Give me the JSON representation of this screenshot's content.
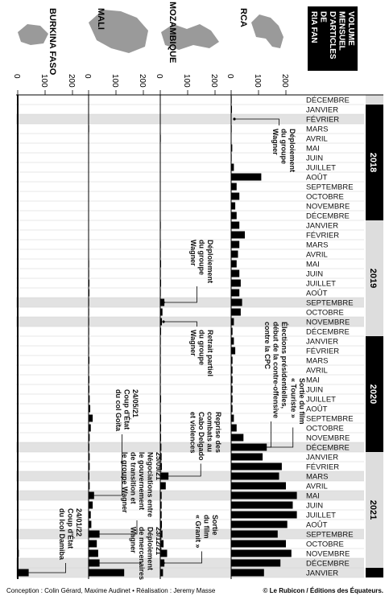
{
  "chart_data": {
    "type": "bar",
    "title": [
      "VOLUME",
      "MENSUEL",
      "D'ARTICLES",
      "DE",
      "RIA FAN"
    ],
    "categories": [
      "DÉCEMBRE",
      "JANVIER",
      "FÉVRIER",
      "MARS",
      "AVRIL",
      "MAI",
      "JUIN",
      "JUILLET",
      "AOÛT",
      "SEPTEMBRE",
      "OCTOBRE",
      "NOVEMBRE",
      "DÉCEMBRE",
      "JANVIER",
      "FÉVRIER",
      "MARS",
      "AVRIL",
      "MAI",
      "JUIN",
      "JUILLET",
      "AOÛT",
      "SEPTEMBRE",
      "OCTOBRE",
      "NOVEMBRE",
      "DÉCEMBRE",
      "JANVIER",
      "FÉVRIER",
      "MARS",
      "AVRIL",
      "MAI",
      "JUIN",
      "JUILLET",
      "AOÛT",
      "SEPTEMBRE",
      "OCTOBRE",
      "NOVEMBRE",
      "DÉCEMBRE",
      "JANVIER",
      "FÉVRIER",
      "MARS",
      "AVRIL",
      "MAI",
      "JUIN",
      "JUILLET",
      "AOÛT",
      "SEPTEMBRE",
      "OCTOBRE",
      "NOVEMBRE",
      "DÉCEMBRE",
      "JANVIER"
    ],
    "years": [
      "2018",
      "2019",
      "2020",
      "2021"
    ],
    "xlim": [
      0,
      250
    ],
    "xticks": [
      0,
      100,
      200
    ],
    "series": [
      {
        "name": "RCA",
        "color": "#000000",
        "values": [
          2,
          3,
          0,
          2,
          1,
          4,
          2,
          10,
          110,
          20,
          30,
          15,
          20,
          30,
          50,
          30,
          25,
          20,
          30,
          35,
          30,
          40,
          35,
          10,
          5,
          10,
          15,
          5,
          5,
          5,
          5,
          5,
          5,
          10,
          20,
          45,
          130,
          115,
          185,
          175,
          200,
          240,
          225,
          240,
          205,
          170,
          200,
          220,
          180,
          120
        ]
      },
      {
        "name": "MOZAMBIQUE",
        "color": "#000000",
        "values": [
          1,
          1,
          1,
          1,
          2,
          1,
          1,
          1,
          1,
          1,
          1,
          1,
          1,
          2,
          1,
          2,
          2,
          3,
          2,
          3,
          2,
          15,
          8,
          6,
          3,
          2,
          2,
          2,
          2,
          2,
          2,
          3,
          2,
          3,
          3,
          3,
          4,
          5,
          6,
          30,
          20,
          5,
          5,
          5,
          6,
          8,
          12,
          25,
          15,
          10
        ]
      },
      {
        "name": "MALI",
        "color": "#000000",
        "values": [
          1,
          1,
          1,
          2,
          1,
          1,
          1,
          1,
          1,
          1,
          1,
          1,
          1,
          1,
          1,
          1,
          1,
          2,
          2,
          3,
          3,
          2,
          2,
          2,
          2,
          2,
          2,
          3,
          2,
          3,
          3,
          4,
          6,
          15,
          8,
          4,
          3,
          4,
          4,
          3,
          4,
          20,
          15,
          8,
          10,
          40,
          30,
          35,
          40,
          130
        ]
      },
      {
        "name": "BURKINA FASO",
        "color": "#000000",
        "values": [
          1,
          1,
          1,
          1,
          1,
          1,
          1,
          1,
          1,
          1,
          1,
          1,
          1,
          1,
          1,
          1,
          1,
          1,
          1,
          1,
          2,
          1,
          1,
          1,
          1,
          1,
          1,
          1,
          1,
          1,
          1,
          2,
          1,
          1,
          2,
          1,
          2,
          1,
          2,
          2,
          2,
          3,
          2,
          2,
          2,
          3,
          3,
          4,
          3,
          40
        ]
      }
    ],
    "annotations": [
      {
        "lines": [
          "Déploiement",
          "du groupe",
          "Wagner"
        ]
      },
      {
        "lines": [
          "Élections présidentielles,",
          "début de la contre-offensive",
          "contre la CPC"
        ]
      },
      {
        "lines": [
          "Sortie du film",
          "« Touriste »"
        ]
      },
      {
        "lines": [
          "Déploiement",
          "du groupe",
          "Wagner"
        ]
      },
      {
        "lines": [
          "Retrait partiel",
          "du groupe",
          "Wagner"
        ]
      },
      {
        "lines": [
          "Reprise des",
          "combats au",
          "Cabo Delgado",
          "et violences"
        ]
      },
      {
        "lines": [
          "Sortie",
          "du film",
          "« Granit »"
        ]
      },
      {
        "lines": [
          "24/05/21",
          "Coup d'État",
          "du col Goïta"
        ]
      },
      {
        "lines": [
          "25/09/21",
          "Négociations entre",
          "le gouvernement",
          "de transition et",
          "le groupe Wagner"
        ]
      },
      {
        "lines": [
          "23/12/21",
          "Déploiement",
          "de mercenaires",
          "Wagner"
        ]
      },
      {
        "lines": [
          "24/01/22",
          "Coup d'État",
          "du lcol Damiba"
        ]
      }
    ],
    "credits": "Conception : Colin Gérard, Maxime Audinet  •  Réalisation : Jeremy Masse",
    "source": "© Le Rubicon / Éditions des Équateurs."
  }
}
